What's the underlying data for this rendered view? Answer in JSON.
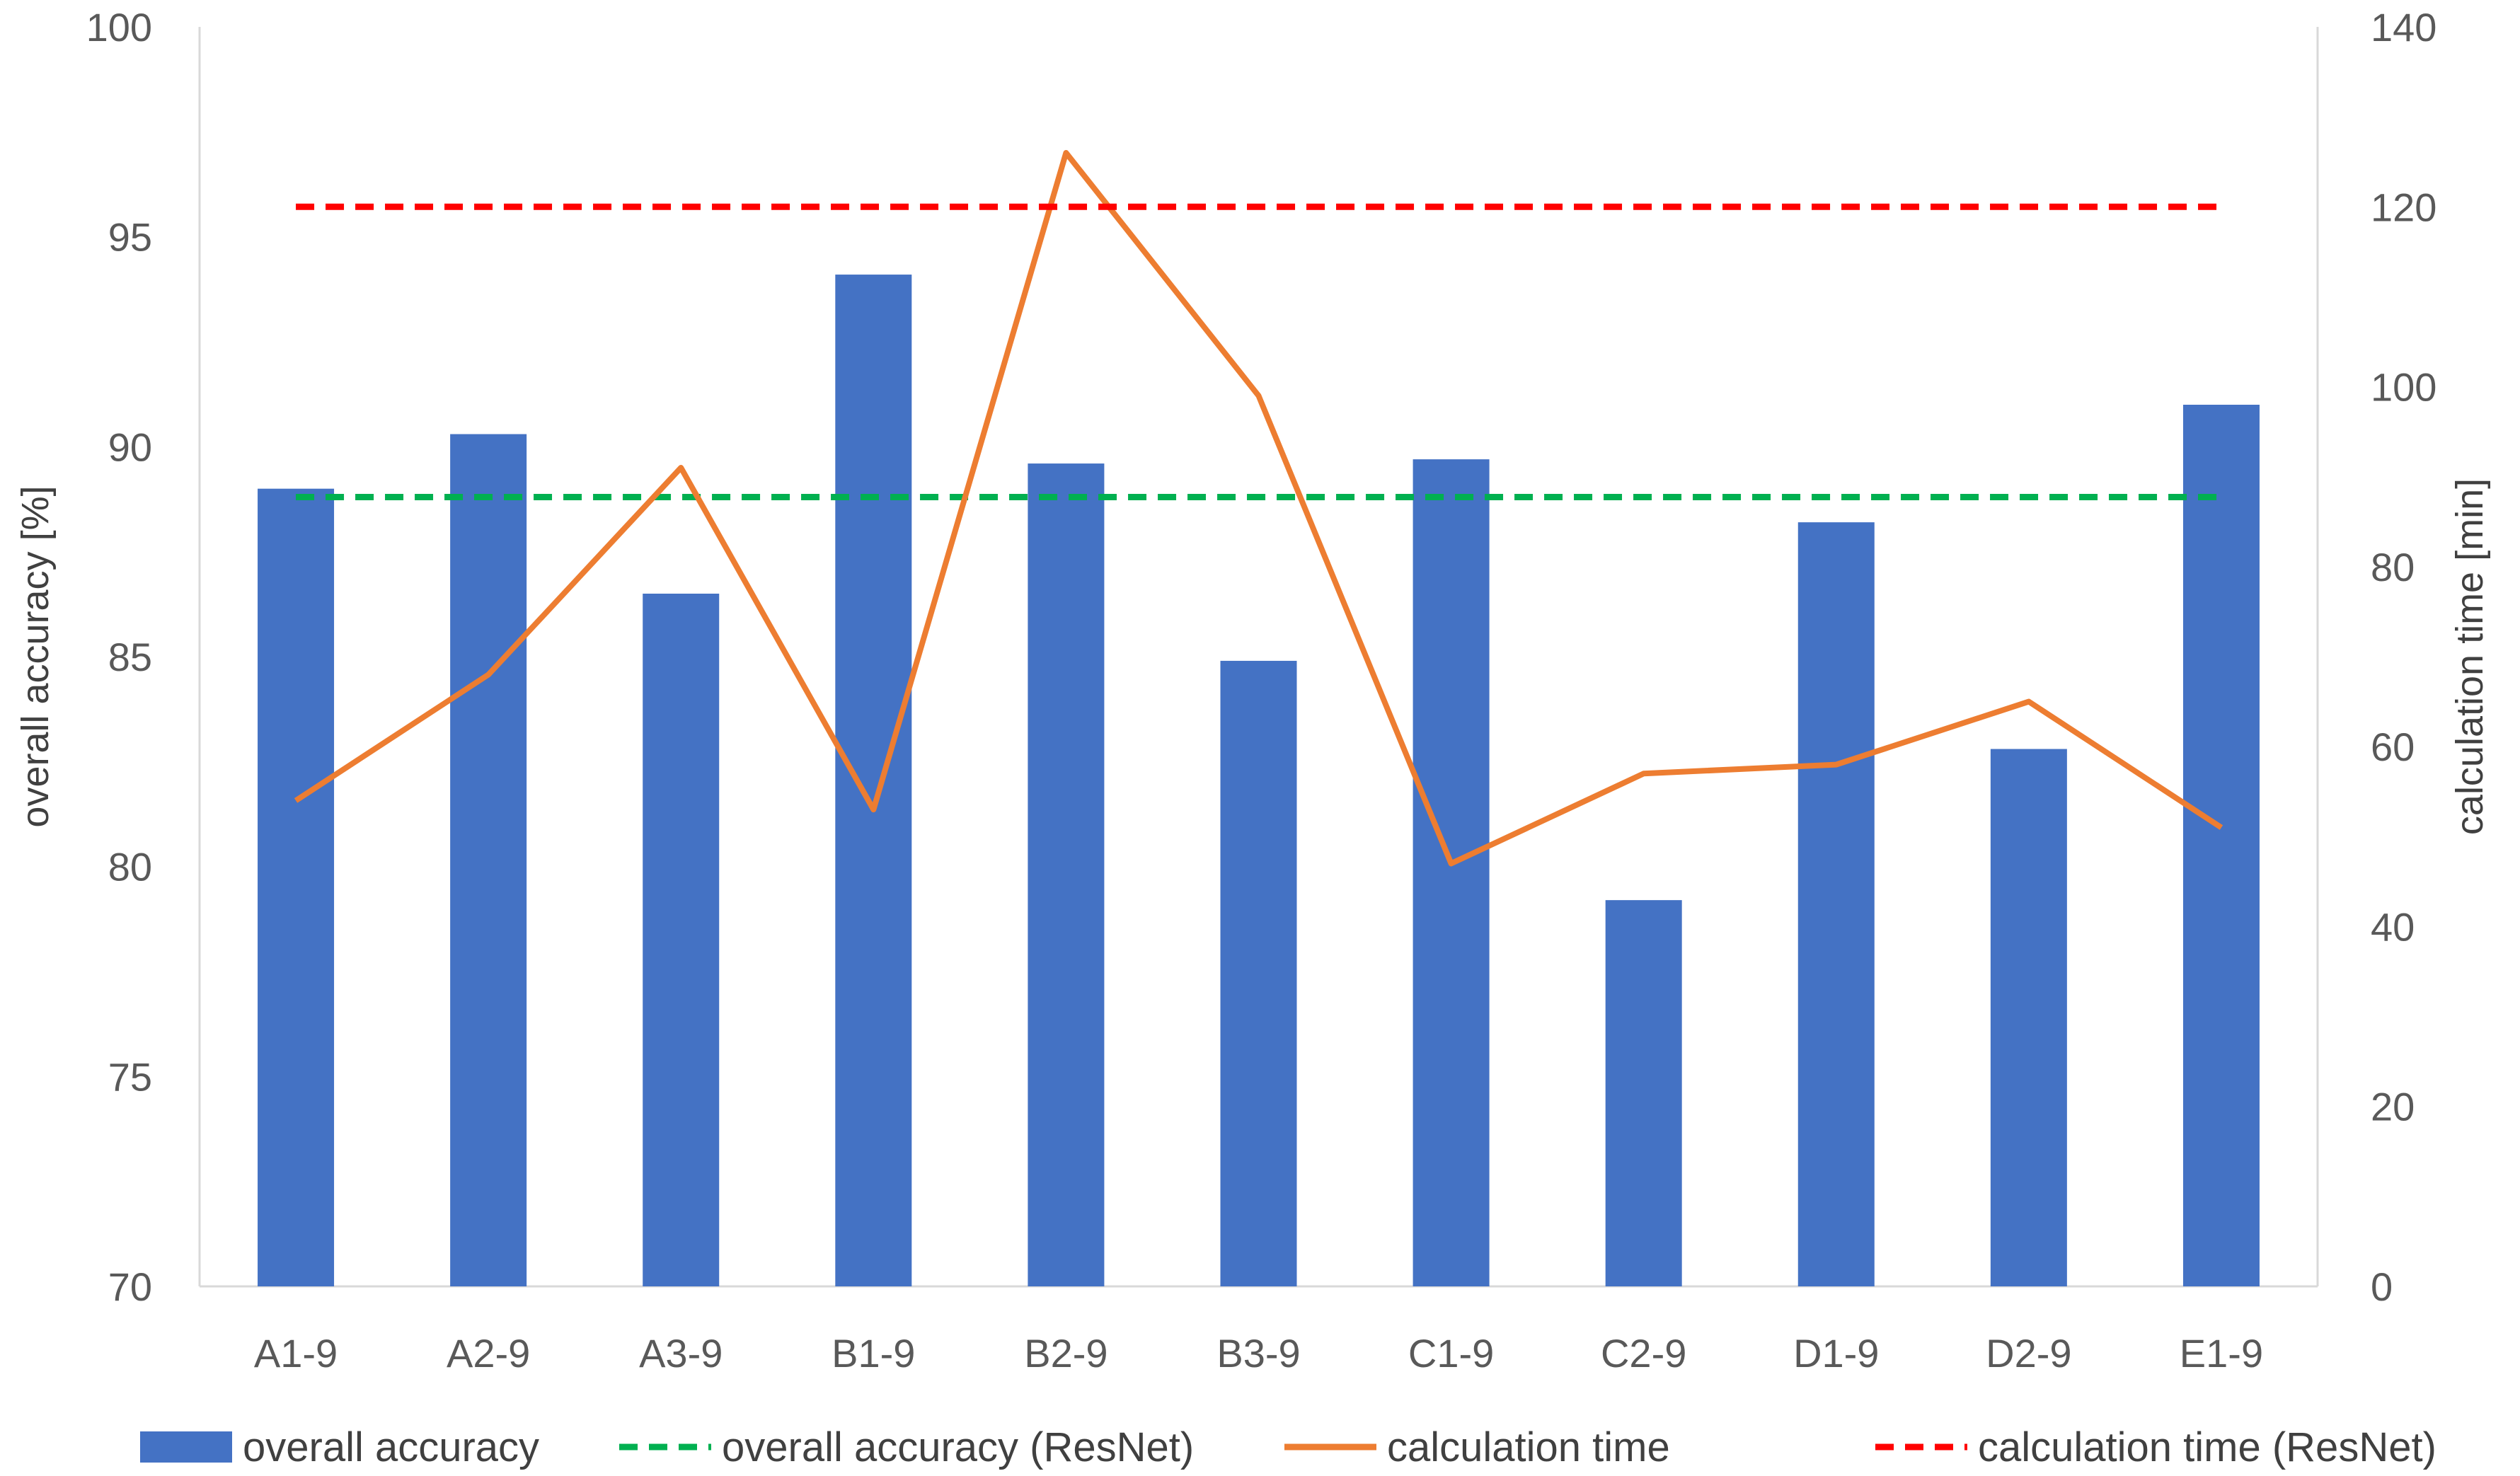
{
  "chart_data": {
    "type": "bar",
    "categories": [
      "A1-9",
      "A2-9",
      "A3-9",
      "B1-9",
      "B2-9",
      "B3-9",
      "C1-9",
      "C2-9",
      "D1-9",
      "D2-9",
      "E1-9"
    ],
    "series": [
      {
        "name": "overall accuracy",
        "type": "bar",
        "axis": "left",
        "color": "#4472C4",
        "values": [
          89.0,
          90.3,
          86.5,
          94.1,
          89.6,
          84.9,
          89.7,
          79.2,
          88.2,
          82.8,
          91.0
        ]
      },
      {
        "name": "overall accuracy (ResNet)",
        "type": "line",
        "dash": "dashed",
        "axis": "left",
        "color": "#00B050",
        "values": [
          88.8,
          88.8,
          88.8,
          88.8,
          88.8,
          88.8,
          88.8,
          88.8,
          88.8,
          88.8,
          88.8
        ]
      },
      {
        "name": "calculation time",
        "type": "line",
        "dash": "solid",
        "axis": "right",
        "color": "#ED7D31",
        "values": [
          54,
          68,
          91,
          53,
          126,
          99,
          47,
          57,
          58,
          65,
          51
        ]
      },
      {
        "name": "calculation time (ResNet)",
        "type": "line",
        "dash": "dashed",
        "axis": "right",
        "color": "#FF0000",
        "values": [
          120,
          120,
          120,
          120,
          120,
          120,
          120,
          120,
          120,
          120,
          120
        ]
      }
    ],
    "ylabel": "overall accuracy [%]",
    "ylim": [
      70,
      100
    ],
    "yticks": [
      "70",
      "75",
      "80",
      "85",
      "90",
      "95",
      "100"
    ],
    "ylabel_right": "calculation time [min]",
    "ylim_right": [
      0,
      140
    ],
    "yticks_right": [
      "0",
      "20",
      "40",
      "60",
      "80",
      "100",
      "120",
      "140"
    ],
    "grid": false,
    "legend": "bottom",
    "axis_color": "#D9D9D9"
  }
}
